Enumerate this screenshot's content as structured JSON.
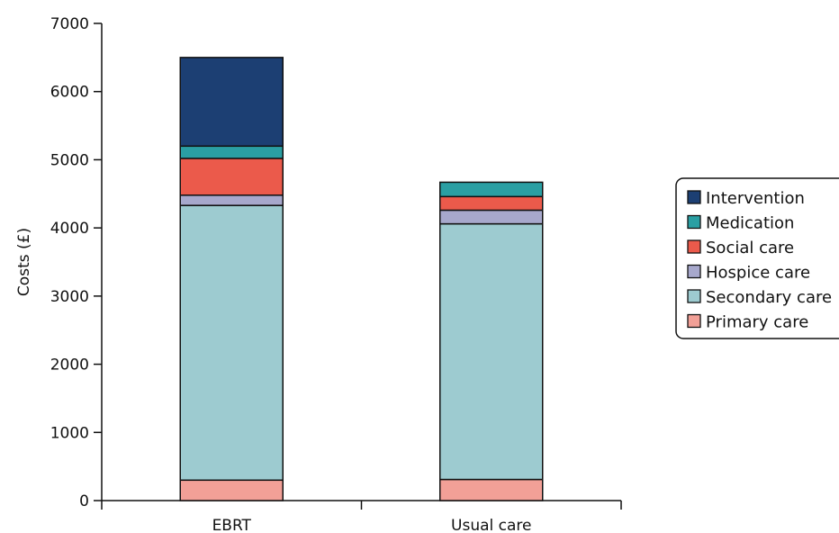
{
  "chart_data": {
    "type": "bar",
    "stacked": true,
    "categories": [
      "EBRT",
      "Usual care"
    ],
    "series": [
      {
        "name": "Primary care",
        "color": "#F2A097",
        "values": [
          300,
          310
        ]
      },
      {
        "name": "Secondary care",
        "color": "#9DCBD0",
        "values": [
          4030,
          3750
        ]
      },
      {
        "name": "Hospice care",
        "color": "#A7A8CC",
        "values": [
          150,
          200
        ]
      },
      {
        "name": "Social care",
        "color": "#EB5A4B",
        "values": [
          540,
          200
        ]
      },
      {
        "name": "Medication",
        "color": "#2A9FA3",
        "values": [
          180,
          210
        ]
      },
      {
        "name": "Intervention",
        "color": "#1C3F73",
        "values": [
          1300,
          0
        ]
      }
    ],
    "ylabel": "Costs (£)",
    "xlabel": "",
    "ylim": [
      0,
      7000
    ],
    "yticks": [
      0,
      1000,
      2000,
      3000,
      4000,
      5000,
      6000,
      7000
    ],
    "legend_position": "right",
    "grid": false
  }
}
